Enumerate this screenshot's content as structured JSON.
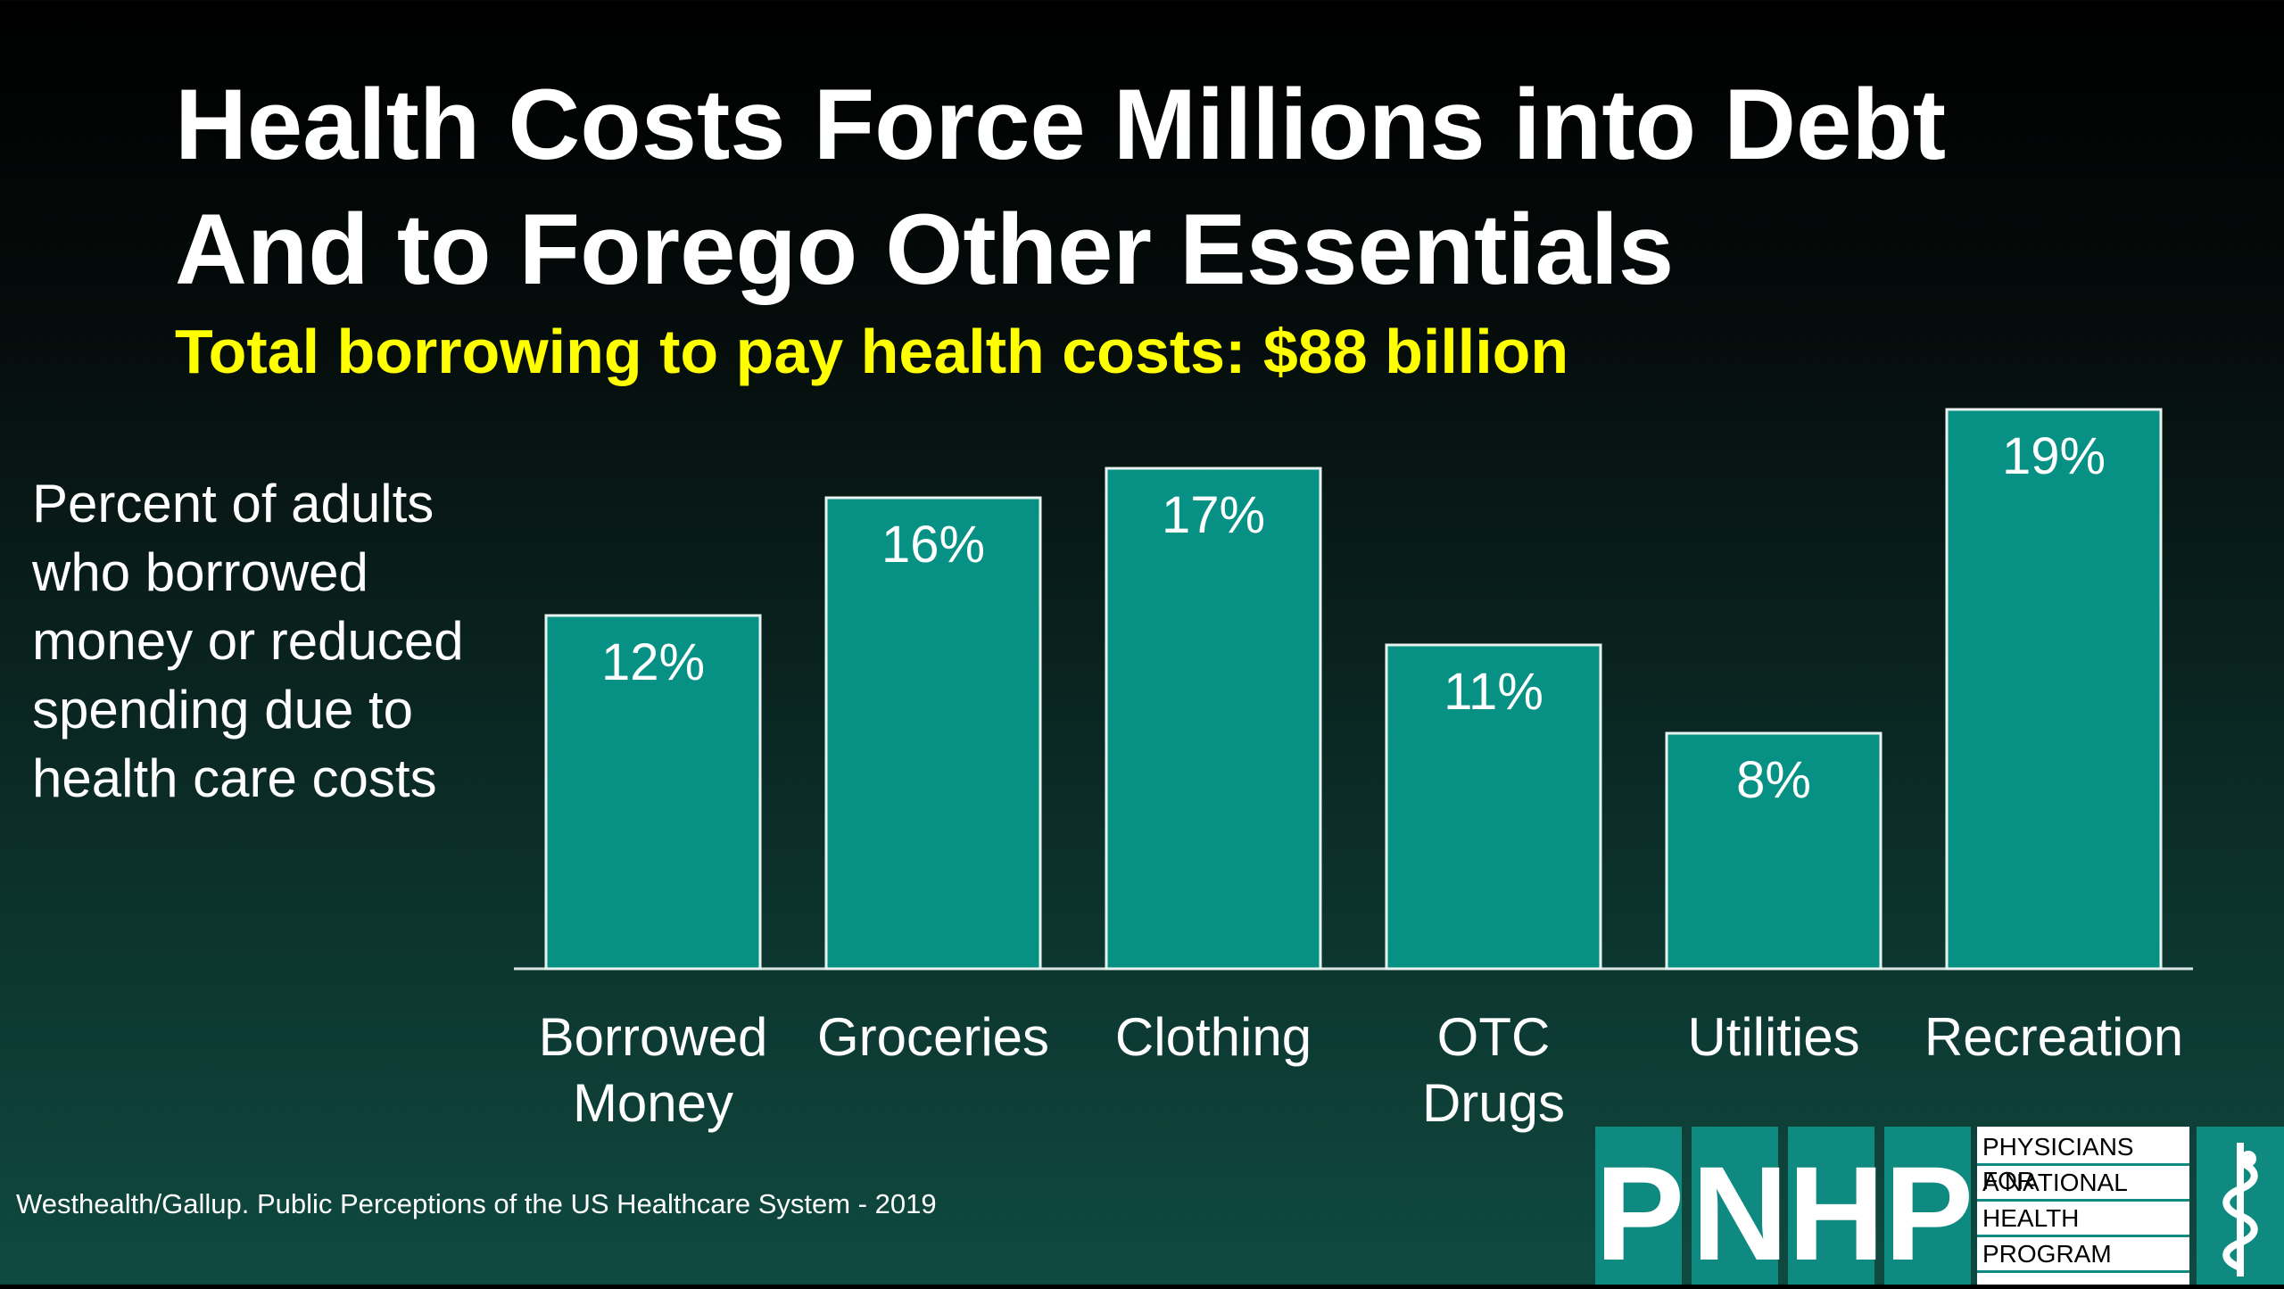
{
  "title_line1": "Health Costs Force Millions into Debt",
  "title_line2": "And to Forego Other Essentials",
  "subtitle": "Total borrowing to pay health costs: $88 billion",
  "ylabel_lines": [
    "Percent of adults",
    "who borrowed",
    "money or reduced",
    "spending due to",
    "health care costs"
  ],
  "source": "Westhealth/Gallup. Public Perceptions of the US Healthcare System - 2019",
  "logo": {
    "letters": [
      "P",
      "N",
      "H",
      "P"
    ],
    "text_lines": [
      "PHYSICIANS FOR",
      "A NATIONAL",
      "HEALTH",
      "PROGRAM"
    ],
    "emblem": "caduceus-icon"
  },
  "colors": {
    "bar_fill": "#079185",
    "bar_stroke": "#e8f2f0",
    "title_text": "#ffffff",
    "subtitle_text": "#ffff00",
    "logo_teal": "#0f8a80"
  },
  "chart_data": {
    "type": "bar",
    "categories": [
      [
        "Borrowed",
        "Money"
      ],
      [
        "Groceries"
      ],
      [
        "Clothing"
      ],
      [
        "OTC",
        "Drugs"
      ],
      [
        "Utilities"
      ],
      [
        "Recreation"
      ]
    ],
    "values": [
      12,
      16,
      17,
      11,
      8,
      19
    ],
    "data_labels": [
      "12%",
      "16%",
      "17%",
      "11%",
      "8%",
      "19%"
    ],
    "unit": "%",
    "title": "Health Costs Force Millions into Debt And to Forego Other Essentials",
    "ylabel": "Percent of adults who borrowed money or reduced spending due to health care costs",
    "xlabel": "",
    "grid": false,
    "legend": "none"
  }
}
